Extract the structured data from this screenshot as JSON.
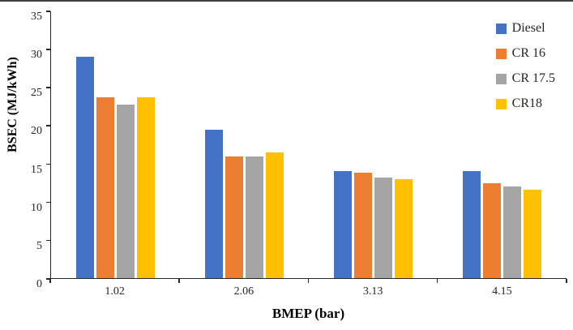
{
  "chart_data": {
    "type": "bar",
    "title": "",
    "xlabel": "BMEP (bar)",
    "ylabel": "BSEC (MJ/kWh)",
    "ylim": [
      0,
      35
    ],
    "ytick_step": 5,
    "grid": false,
    "legend_position": "top-right-inside",
    "categories": [
      "1.02",
      "2.06",
      "3.13",
      "4.15"
    ],
    "series": [
      {
        "name": "Diesel",
        "color": "#4472C4",
        "values": [
          29.0,
          19.5,
          14.0,
          14.0
        ]
      },
      {
        "name": "CR 16",
        "color": "#ED7D31",
        "values": [
          23.7,
          16.0,
          13.8,
          12.4
        ]
      },
      {
        "name": "CR 17.5",
        "color": "#A5A5A5",
        "values": [
          22.8,
          16.0,
          13.2,
          12.0
        ]
      },
      {
        "name": "CR18",
        "color": "#FFC000",
        "values": [
          23.7,
          16.5,
          13.0,
          11.6
        ]
      }
    ]
  }
}
